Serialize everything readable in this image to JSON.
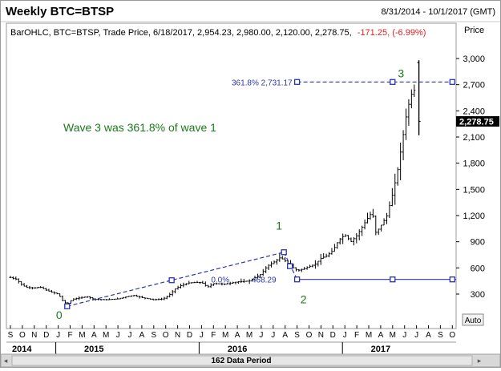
{
  "header": {
    "title": "Weekly BTC=BTSP",
    "date_range": "8/31/2014 - 10/1/2017 (GMT)"
  },
  "info_line": {
    "main": "BarOHLC, BTC=BTSP, Trade Price, 6/18/2017, 2,954.23, 2,980.00, 2,120.00, 2,278.75,",
    "change": "-171.25, (-6.99%)"
  },
  "axis": {
    "price_title": "Price",
    "auto_label": "Auto",
    "data_period": "162 Data Period"
  },
  "colors": {
    "bars": "#000000",
    "wave_labels": "#1a7a1a",
    "fib_lines": "#2a35a8",
    "change_text": "#e02020",
    "last_price_bg": "#000000"
  },
  "annotations": {
    "wave_note": "Wave 3 was 361.8% of wave 1",
    "wave0": "0",
    "wave1": "1",
    "wave2": "2",
    "wave3": "3",
    "fib_upper": "361.8% 2,731.17",
    "fib_lower_pct": "0.0%",
    "fib_lower_val": "468.29"
  },
  "chart_data": {
    "type": "bar",
    "title": "Weekly BTC=BTSP",
    "ylabel": "Price",
    "last_price": "2,278.75",
    "ylim": [
      300,
      3000
    ],
    "y_ticks": [
      {
        "v": 3000,
        "label": "3,000"
      },
      {
        "v": 2700,
        "label": "2,700"
      },
      {
        "v": 2400,
        "label": "2,400"
      },
      {
        "v": 2100,
        "label": "2,100"
      },
      {
        "v": 1800,
        "label": "1,800"
      },
      {
        "v": 1500,
        "label": "1,500"
      },
      {
        "v": 1200,
        "label": "1,200"
      },
      {
        "v": 900,
        "label": "900"
      },
      {
        "v": 600,
        "label": "600"
      },
      {
        "v": 300,
        "label": "300"
      }
    ],
    "x_ticks": [
      {
        "t": 0,
        "label": "S"
      },
      {
        "t": 1,
        "label": "O"
      },
      {
        "t": 2,
        "label": "N"
      },
      {
        "t": 3,
        "label": "D"
      },
      {
        "t": 4,
        "label": "J"
      },
      {
        "t": 5,
        "label": "F"
      },
      {
        "t": 6,
        "label": "M"
      },
      {
        "t": 7,
        "label": "A"
      },
      {
        "t": 8,
        "label": "M"
      },
      {
        "t": 9,
        "label": "J"
      },
      {
        "t": 10,
        "label": "J"
      },
      {
        "t": 11,
        "label": "A"
      },
      {
        "t": 12,
        "label": "S"
      },
      {
        "t": 13,
        "label": "O"
      },
      {
        "t": 14,
        "label": "N"
      },
      {
        "t": 15,
        "label": "D"
      },
      {
        "t": 16,
        "label": "J"
      },
      {
        "t": 17,
        "label": "F"
      },
      {
        "t": 18,
        "label": "M"
      },
      {
        "t": 19,
        "label": "A"
      },
      {
        "t": 20,
        "label": "M"
      },
      {
        "t": 21,
        "label": "J"
      },
      {
        "t": 22,
        "label": "J"
      },
      {
        "t": 23,
        "label": "A"
      },
      {
        "t": 24,
        "label": "S"
      },
      {
        "t": 25,
        "label": "O"
      },
      {
        "t": 26,
        "label": "N"
      },
      {
        "t": 27,
        "label": "D"
      },
      {
        "t": 28,
        "label": "J"
      },
      {
        "t": 29,
        "label": "F"
      },
      {
        "t": 30,
        "label": "M"
      },
      {
        "t": 31,
        "label": "A"
      },
      {
        "t": 32,
        "label": "M"
      },
      {
        "t": 33,
        "label": "J"
      },
      {
        "t": 34,
        "label": "J"
      },
      {
        "t": 35,
        "label": "A"
      },
      {
        "t": 36,
        "label": "S"
      },
      {
        "t": 37,
        "label": "O"
      }
    ],
    "years": [
      {
        "t": 0,
        "label": "2014"
      },
      {
        "t": 7,
        "label": "2015"
      },
      {
        "t": 19,
        "label": "2016"
      },
      {
        "t": 31,
        "label": "2017"
      }
    ],
    "year_separators": [
      4,
      16,
      28
    ],
    "wave_points": [
      {
        "t": 4.75,
        "v": 160
      },
      {
        "t": 22.9,
        "v": 780
      },
      {
        "t": 24.0,
        "v": 468
      }
    ],
    "fib_upper_segment": {
      "t_start": 24.0,
      "t_end": 37.0,
      "v": 2731
    },
    "fib_upper_handles": [
      24.0,
      32.0
    ],
    "fib_lower_segment": {
      "t_start": 24.0,
      "t_end": 37.0,
      "v": 468
    },
    "fib_lower_handles": [
      24.0,
      32.0
    ],
    "fib_trend_handles": [
      4.75,
      13.5,
      22.9
    ],
    "last_bar": {
      "t": 34.2,
      "open": 2954,
      "high": 2980,
      "low": 2120,
      "close": 2279
    },
    "anchors": [
      {
        "t": 0.0,
        "v": 490
      },
      {
        "t": 0.5,
        "v": 470
      },
      {
        "t": 1.0,
        "v": 400
      },
      {
        "t": 1.4,
        "v": 375
      },
      {
        "t": 2.0,
        "v": 370
      },
      {
        "t": 2.5,
        "v": 380
      },
      {
        "t": 3.0,
        "v": 345
      },
      {
        "t": 3.5,
        "v": 320
      },
      {
        "t": 4.0,
        "v": 300
      },
      {
        "t": 4.4,
        "v": 220
      },
      {
        "t": 4.75,
        "v": 185
      },
      {
        "t": 5.2,
        "v": 240
      },
      {
        "t": 6.0,
        "v": 262
      },
      {
        "t": 6.5,
        "v": 270
      },
      {
        "t": 7.0,
        "v": 240
      },
      {
        "t": 8.0,
        "v": 235
      },
      {
        "t": 9.0,
        "v": 245
      },
      {
        "t": 9.7,
        "v": 270
      },
      {
        "t": 10.3,
        "v": 285
      },
      {
        "t": 11.0,
        "v": 260
      },
      {
        "t": 12.0,
        "v": 235
      },
      {
        "t": 12.8,
        "v": 245
      },
      {
        "t": 13.3,
        "v": 290
      },
      {
        "t": 13.8,
        "v": 360
      },
      {
        "t": 14.3,
        "v": 400
      },
      {
        "t": 15.0,
        "v": 430
      },
      {
        "t": 16.0,
        "v": 435
      },
      {
        "t": 16.5,
        "v": 380
      },
      {
        "t": 17.0,
        "v": 420
      },
      {
        "t": 18.0,
        "v": 415
      },
      {
        "t": 19.0,
        "v": 440
      },
      {
        "t": 20.0,
        "v": 450
      },
      {
        "t": 21.0,
        "v": 530
      },
      {
        "t": 21.5,
        "v": 620
      },
      {
        "t": 22.0,
        "v": 660
      },
      {
        "t": 22.6,
        "v": 720
      },
      {
        "t": 23.0,
        "v": 680
      },
      {
        "t": 23.6,
        "v": 610
      },
      {
        "t": 24.0,
        "v": 570
      },
      {
        "t": 24.6,
        "v": 590
      },
      {
        "t": 25.0,
        "v": 615
      },
      {
        "t": 25.5,
        "v": 640
      },
      {
        "t": 26.0,
        "v": 710
      },
      {
        "t": 26.5,
        "v": 740
      },
      {
        "t": 27.0,
        "v": 800
      },
      {
        "t": 27.5,
        "v": 920
      },
      {
        "t": 28.0,
        "v": 980
      },
      {
        "t": 28.5,
        "v": 900
      },
      {
        "t": 29.0,
        "v": 970
      },
      {
        "t": 29.5,
        "v": 1080
      },
      {
        "t": 30.0,
        "v": 1190
      },
      {
        "t": 30.3,
        "v": 1240
      },
      {
        "t": 30.6,
        "v": 1000
      },
      {
        "t": 31.0,
        "v": 1080
      },
      {
        "t": 31.5,
        "v": 1190
      },
      {
        "t": 32.0,
        "v": 1450
      },
      {
        "t": 32.4,
        "v": 1700
      },
      {
        "t": 32.8,
        "v": 2050
      },
      {
        "t": 33.2,
        "v": 2400
      },
      {
        "t": 33.6,
        "v": 2600
      },
      {
        "t": 33.9,
        "v": 2650
      }
    ]
  }
}
